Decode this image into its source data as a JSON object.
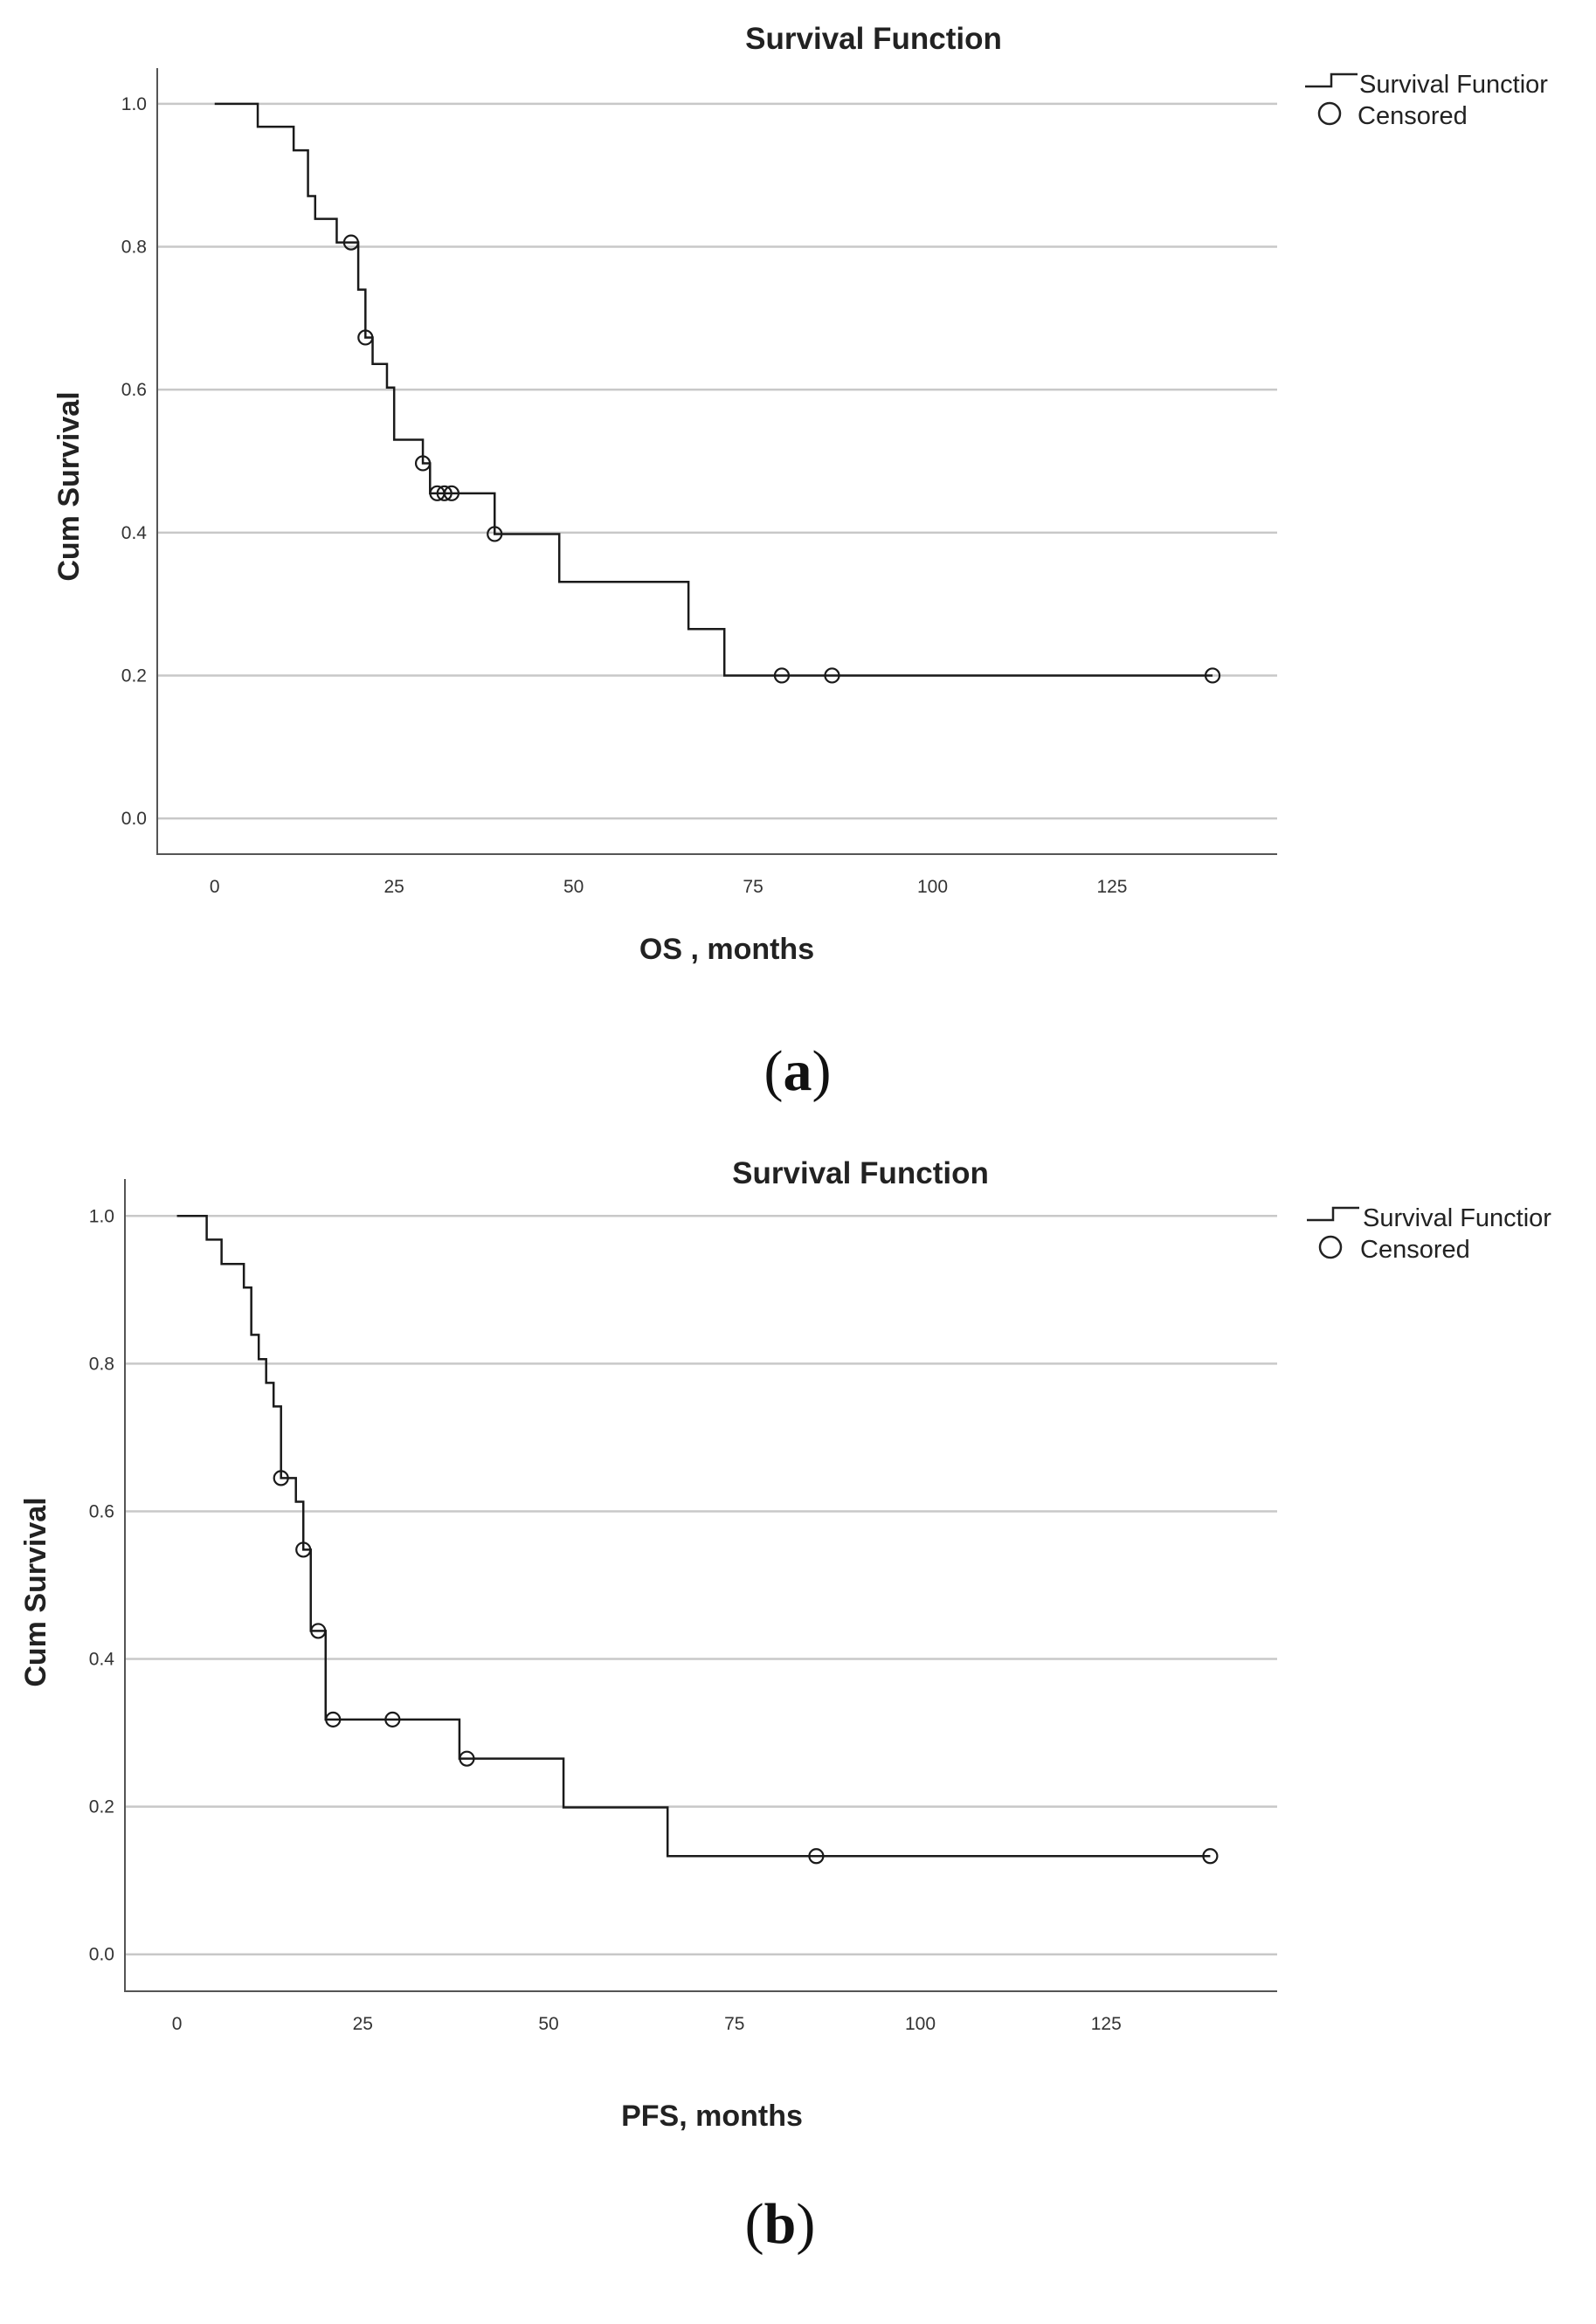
{
  "chart_data": [
    {
      "type": "line",
      "subtype": "kaplan-meier",
      "title": "Survival Function",
      "xlabel": "OS , months",
      "ylabel": "Cum Survival",
      "panel_label": "a",
      "xlim": [
        -8,
        148
      ],
      "ylim": [
        -0.05,
        1.05
      ],
      "xticks": [
        0,
        25,
        50,
        75,
        100,
        125
      ],
      "xtick_labels": [
        "0",
        "25",
        "50",
        "75",
        "100",
        "125"
      ],
      "yticks": [
        0.0,
        0.2,
        0.4,
        0.6,
        0.8,
        1.0
      ],
      "ytick_labels": [
        "0.0",
        "0.2",
        "0.4",
        "0.6",
        "0.8",
        "1.0"
      ],
      "grid": "horizontal",
      "legend": [
        "Survival Function",
        "Censored"
      ],
      "legend_labels_shown": [
        "Survival Functior",
        "Censored"
      ],
      "legend_position": "outside-top-right",
      "steps": [
        {
          "t": 0,
          "s": 1.0
        },
        {
          "t": 6,
          "s": 0.968
        },
        {
          "t": 11,
          "s": 0.935
        },
        {
          "t": 13,
          "s": 0.871
        },
        {
          "t": 14,
          "s": 0.839
        },
        {
          "t": 17,
          "s": 0.806
        },
        {
          "t": 20,
          "s": 0.74
        },
        {
          "t": 21,
          "s": 0.673
        },
        {
          "t": 22,
          "s": 0.636
        },
        {
          "t": 24,
          "s": 0.603
        },
        {
          "t": 25,
          "s": 0.53
        },
        {
          "t": 29,
          "s": 0.497
        },
        {
          "t": 30,
          "s": 0.455
        },
        {
          "t": 39,
          "s": 0.398
        },
        {
          "t": 48,
          "s": 0.331
        },
        {
          "t": 66,
          "s": 0.265
        },
        {
          "t": 71,
          "s": 0.2
        },
        {
          "t": 139,
          "s": 0.2
        }
      ],
      "censored": [
        {
          "t": 19,
          "s": 0.806
        },
        {
          "t": 21,
          "s": 0.673
        },
        {
          "t": 29,
          "s": 0.497
        },
        {
          "t": 31,
          "s": 0.455
        },
        {
          "t": 32,
          "s": 0.455
        },
        {
          "t": 33,
          "s": 0.455
        },
        {
          "t": 39,
          "s": 0.398
        },
        {
          "t": 79,
          "s": 0.2
        },
        {
          "t": 86,
          "s": 0.2
        },
        {
          "t": 139,
          "s": 0.2
        }
      ]
    },
    {
      "type": "line",
      "subtype": "kaplan-meier",
      "title": "Survival Function",
      "xlabel": "PFS, months",
      "ylabel": "Cum Survival",
      "panel_label": "b",
      "xlim": [
        -7,
        148
      ],
      "ylim": [
        -0.05,
        1.05
      ],
      "xticks": [
        0,
        25,
        50,
        75,
        100,
        125
      ],
      "xtick_labels": [
        "0",
        "25",
        "50",
        "75",
        "100",
        "125"
      ],
      "yticks": [
        0.0,
        0.2,
        0.4,
        0.6,
        0.8,
        1.0
      ],
      "ytick_labels": [
        "0.0",
        "0.2",
        "0.4",
        "0.6",
        "0.8",
        "1.0"
      ],
      "grid": "horizontal",
      "legend": [
        "Survival Function",
        "Censored"
      ],
      "legend_labels_shown": [
        "Survival Functior",
        "Censored"
      ],
      "legend_position": "outside-top-right",
      "steps": [
        {
          "t": 0,
          "s": 1.0
        },
        {
          "t": 4,
          "s": 0.968
        },
        {
          "t": 6,
          "s": 0.935
        },
        {
          "t": 9,
          "s": 0.903
        },
        {
          "t": 10,
          "s": 0.839
        },
        {
          "t": 11,
          "s": 0.806
        },
        {
          "t": 12,
          "s": 0.774
        },
        {
          "t": 13,
          "s": 0.742
        },
        {
          "t": 14,
          "s": 0.645
        },
        {
          "t": 16,
          "s": 0.613
        },
        {
          "t": 17,
          "s": 0.548
        },
        {
          "t": 18,
          "s": 0.438
        },
        {
          "t": 20,
          "s": 0.318
        },
        {
          "t": 38,
          "s": 0.265
        },
        {
          "t": 52,
          "s": 0.199
        },
        {
          "t": 66,
          "s": 0.133
        },
        {
          "t": 139,
          "s": 0.133
        }
      ],
      "censored": [
        {
          "t": 14,
          "s": 0.645
        },
        {
          "t": 17,
          "s": 0.548
        },
        {
          "t": 19,
          "s": 0.438
        },
        {
          "t": 21,
          "s": 0.318
        },
        {
          "t": 29,
          "s": 0.318
        },
        {
          "t": 39,
          "s": 0.265
        },
        {
          "t": 86,
          "s": 0.133
        },
        {
          "t": 139,
          "s": 0.133
        }
      ]
    }
  ]
}
